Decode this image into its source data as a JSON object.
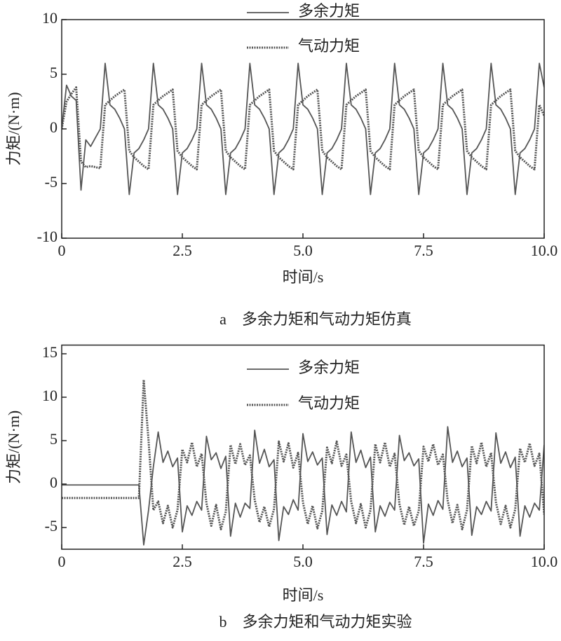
{
  "chart_data": [
    {
      "type": "line",
      "caption": "a　多余力矩和气动力矩仿真",
      "x_label": "时间/s",
      "y_label": "力矩/(N·m)",
      "xlim": [
        0,
        10
      ],
      "ylim": [
        -10,
        10
      ],
      "xticks": [
        0,
        2.5,
        {
          "value": 5,
          "label": "5.0"
        },
        7.5,
        {
          "value": 10,
          "label": "10.0"
        }
      ],
      "yticks": [
        -10,
        -5,
        0,
        5,
        10
      ],
      "x": [
        0,
        0.1,
        0.2,
        0.3,
        0.4,
        0.5,
        0.6,
        0.7,
        0.8,
        0.9,
        1,
        1.1,
        1.2,
        1.3,
        1.4,
        1.5,
        1.6,
        1.7,
        1.8,
        1.9,
        2,
        2.1,
        2.2,
        2.3,
        2.4,
        2.5,
        2.6,
        2.7,
        2.8,
        2.9,
        3,
        3.1,
        3.2,
        3.3,
        3.4,
        3.5,
        3.6,
        3.7,
        3.8,
        3.9,
        4,
        4.1,
        4.2,
        4.3,
        4.4,
        4.5,
        4.6,
        4.7,
        4.8,
        4.9,
        5,
        5.1,
        5.2,
        5.3,
        5.4,
        5.5,
        5.6,
        5.7,
        5.8,
        5.9,
        6,
        6.1,
        6.2,
        6.3,
        6.4,
        6.5,
        6.6,
        6.7,
        6.8,
        6.9,
        7,
        7.1,
        7.2,
        7.3,
        7.4,
        7.5,
        7.6,
        7.7,
        7.8,
        7.9,
        8,
        8.1,
        8.2,
        8.3,
        8.4,
        8.5,
        8.6,
        8.7,
        8.8,
        8.9,
        9,
        9.1,
        9.2,
        9.3,
        9.4,
        9.5,
        9.6,
        9.7,
        9.8,
        9.9,
        10
      ],
      "series": [
        {
          "name": "多余力矩",
          "color": "#555555",
          "style": "solid",
          "values": [
            0,
            4.0,
            3.0,
            2.6,
            -5.6,
            -1.0,
            -1.6,
            -0.8,
            0,
            6.0,
            2.2,
            1.8,
            1.0,
            0,
            -6.0,
            -2.2,
            -1.8,
            -1.0,
            0,
            6.0,
            2.2,
            1.8,
            1.0,
            0,
            -6.0,
            -2.2,
            -1.8,
            -1.0,
            0,
            6.0,
            2.2,
            1.8,
            1.0,
            0,
            -6.0,
            -2.2,
            -1.8,
            -1.0,
            0,
            6.0,
            2.2,
            1.8,
            1.0,
            0,
            -6.0,
            -2.2,
            -1.8,
            -1.0,
            0,
            6.0,
            2.2,
            1.8,
            1.0,
            0,
            -6.0,
            -2.2,
            -1.8,
            -1.0,
            0,
            6.0,
            2.2,
            1.8,
            1.0,
            0,
            -6.0,
            -2.2,
            -1.8,
            -1.0,
            0,
            6.0,
            2.2,
            1.8,
            1.0,
            0,
            -6.0,
            -2.2,
            -1.8,
            -1.0,
            0,
            6.0,
            2.2,
            1.8,
            1.0,
            0,
            -6.0,
            -2.2,
            -1.8,
            -1.0,
            0,
            6.0,
            2.2,
            1.8,
            1.0,
            0,
            -6.0,
            -2.2,
            -1.8,
            -1.0,
            0,
            6.0,
            3.8
          ]
        },
        {
          "name": "气动力矩",
          "color": "#555555",
          "style": "dotted",
          "values": [
            0,
            2.5,
            3.2,
            3.8,
            -3.0,
            -3.5,
            -3.4,
            -3.5,
            -3.6,
            2.2,
            2.6,
            3.0,
            3.3,
            3.6,
            -2.0,
            -2.6,
            -3.0,
            -3.4,
            -3.7,
            2.2,
            2.6,
            3.0,
            3.3,
            3.6,
            -2.0,
            -2.6,
            -3.0,
            -3.4,
            -3.7,
            2.2,
            2.6,
            3.0,
            3.3,
            3.6,
            -2.0,
            -2.6,
            -3.0,
            -3.4,
            -3.7,
            2.2,
            2.6,
            3.0,
            3.3,
            3.6,
            -2.0,
            -2.6,
            -3.0,
            -3.4,
            -3.7,
            2.2,
            2.6,
            3.0,
            3.3,
            3.6,
            -2.0,
            -2.6,
            -3.0,
            -3.4,
            -3.7,
            2.2,
            2.6,
            3.0,
            3.3,
            3.6,
            -2.0,
            -2.6,
            -3.0,
            -3.4,
            -3.7,
            2.2,
            2.6,
            3.0,
            3.3,
            3.6,
            -2.0,
            -2.6,
            -3.0,
            -3.4,
            -3.7,
            2.2,
            2.6,
            3.0,
            3.3,
            3.6,
            -2.0,
            -2.6,
            -3.0,
            -3.4,
            -3.7,
            2.2,
            2.6,
            3.0,
            3.3,
            3.6,
            -2.0,
            -2.6,
            -3.0,
            -3.4,
            -3.7,
            2.2,
            1.2
          ]
        }
      ]
    },
    {
      "type": "line",
      "caption": "b　多余力矩和气动力矩实验",
      "x_label": "时间/s",
      "y_label": "力矩/(N·m)",
      "xlim": [
        0,
        10
      ],
      "ylim": [
        -7.5,
        16
      ],
      "xticks": [
        0,
        2.5,
        {
          "value": 5,
          "label": "5.0"
        },
        7.5,
        {
          "value": 10,
          "label": "10.0"
        }
      ],
      "yticks": [
        -5,
        0,
        5,
        10,
        15
      ],
      "x": [
        0,
        0.1,
        0.2,
        0.3,
        0.4,
        0.5,
        0.6,
        0.7,
        0.8,
        0.9,
        1,
        1.1,
        1.2,
        1.3,
        1.4,
        1.5,
        1.6,
        1.7,
        1.8,
        1.9,
        2,
        2.1,
        2.2,
        2.3,
        2.4,
        2.5,
        2.6,
        2.7,
        2.8,
        2.9,
        3,
        3.1,
        3.2,
        3.3,
        3.4,
        3.5,
        3.6,
        3.7,
        3.8,
        3.9,
        4,
        4.1,
        4.2,
        4.3,
        4.4,
        4.5,
        4.6,
        4.7,
        4.8,
        4.9,
        5,
        5.1,
        5.2,
        5.3,
        5.4,
        5.5,
        5.6,
        5.7,
        5.8,
        5.9,
        6,
        6.1,
        6.2,
        6.3,
        6.4,
        6.5,
        6.6,
        6.7,
        6.8,
        6.9,
        7,
        7.1,
        7.2,
        7.3,
        7.4,
        7.5,
        7.6,
        7.7,
        7.8,
        7.9,
        8,
        8.1,
        8.2,
        8.3,
        8.4,
        8.5,
        8.6,
        8.7,
        8.8,
        8.9,
        9,
        9.1,
        9.2,
        9.3,
        9.4,
        9.5,
        9.6,
        9.7,
        9.8,
        9.9,
        10
      ],
      "series": [
        {
          "name": "多余力矩",
          "color": "#555555",
          "style": "solid",
          "values": [
            -0.1,
            -0.1,
            -0.1,
            -0.1,
            -0.1,
            -0.1,
            -0.1,
            -0.1,
            -0.1,
            -0.1,
            -0.1,
            -0.1,
            -0.1,
            -0.1,
            -0.1,
            -0.1,
            -0.1,
            -7.0,
            -3.0,
            2.0,
            6.0,
            2.5,
            3.8,
            2.0,
            3.0,
            -5.5,
            -2.5,
            -3.6,
            -2.0,
            -3.0,
            5.5,
            2.8,
            3.6,
            1.8,
            3.2,
            -6.0,
            -2.2,
            -3.8,
            -2.2,
            -2.8,
            6.2,
            2.4,
            4.0,
            2.0,
            2.8,
            -6.5,
            -2.6,
            -3.5,
            -1.8,
            -3.0,
            5.8,
            2.6,
            3.7,
            2.2,
            3.0,
            -5.8,
            -2.4,
            -3.6,
            -2.0,
            -3.2,
            6.0,
            2.5,
            3.9,
            1.9,
            3.1,
            -5.5,
            -2.5,
            -3.7,
            -2.1,
            -3.0,
            5.6,
            2.7,
            3.6,
            2.1,
            2.9,
            -6.8,
            -2.3,
            -3.6,
            -1.9,
            -2.9,
            6.6,
            2.5,
            3.8,
            2.0,
            3.0,
            -5.9,
            -2.6,
            -3.5,
            -2.0,
            -3.1,
            5.9,
            2.4,
            3.7,
            1.9,
            3.1,
            -6.0,
            -2.5,
            -3.8,
            -2.2,
            -3.0,
            4.5
          ]
        },
        {
          "name": "气动力矩",
          "color": "#555555",
          "style": "dotted",
          "values": [
            -1.6,
            -1.6,
            -1.6,
            -1.6,
            -1.6,
            -1.6,
            -1.6,
            -1.6,
            -1.6,
            -1.6,
            -1.6,
            -1.6,
            -1.6,
            -1.6,
            -1.6,
            -1.6,
            -1.6,
            12.0,
            5.0,
            -3.0,
            -2.0,
            -4.5,
            -2.5,
            -5.0,
            -3.0,
            4.0,
            2.5,
            4.8,
            2.0,
            3.5,
            -2.2,
            -4.8,
            -2.4,
            -5.2,
            -3.2,
            4.5,
            2.3,
            4.6,
            2.2,
            3.3,
            -1.8,
            -4.4,
            -2.6,
            -4.9,
            -2.9,
            4.9,
            2.6,
            4.7,
            1.9,
            3.6,
            -2.1,
            -4.6,
            -2.5,
            -5.1,
            -3.1,
            4.2,
            2.4,
            4.9,
            2.1,
            3.4,
            -2.0,
            -4.5,
            -2.3,
            -5.0,
            -3.0,
            4.6,
            2.5,
            4.8,
            2.0,
            3.5,
            -2.3,
            -4.7,
            -2.6,
            -4.8,
            -3.1,
            4.3,
            2.6,
            4.6,
            2.2,
            3.4,
            -1.9,
            -4.5,
            -2.4,
            -5.2,
            -3.0,
            4.4,
            2.4,
            4.8,
            2.0,
            3.6,
            -2.1,
            -4.6,
            -2.5,
            -5.0,
            -2.9,
            4.1,
            2.5,
            4.7,
            2.1,
            3.5,
            -3.5
          ]
        }
      ]
    }
  ]
}
